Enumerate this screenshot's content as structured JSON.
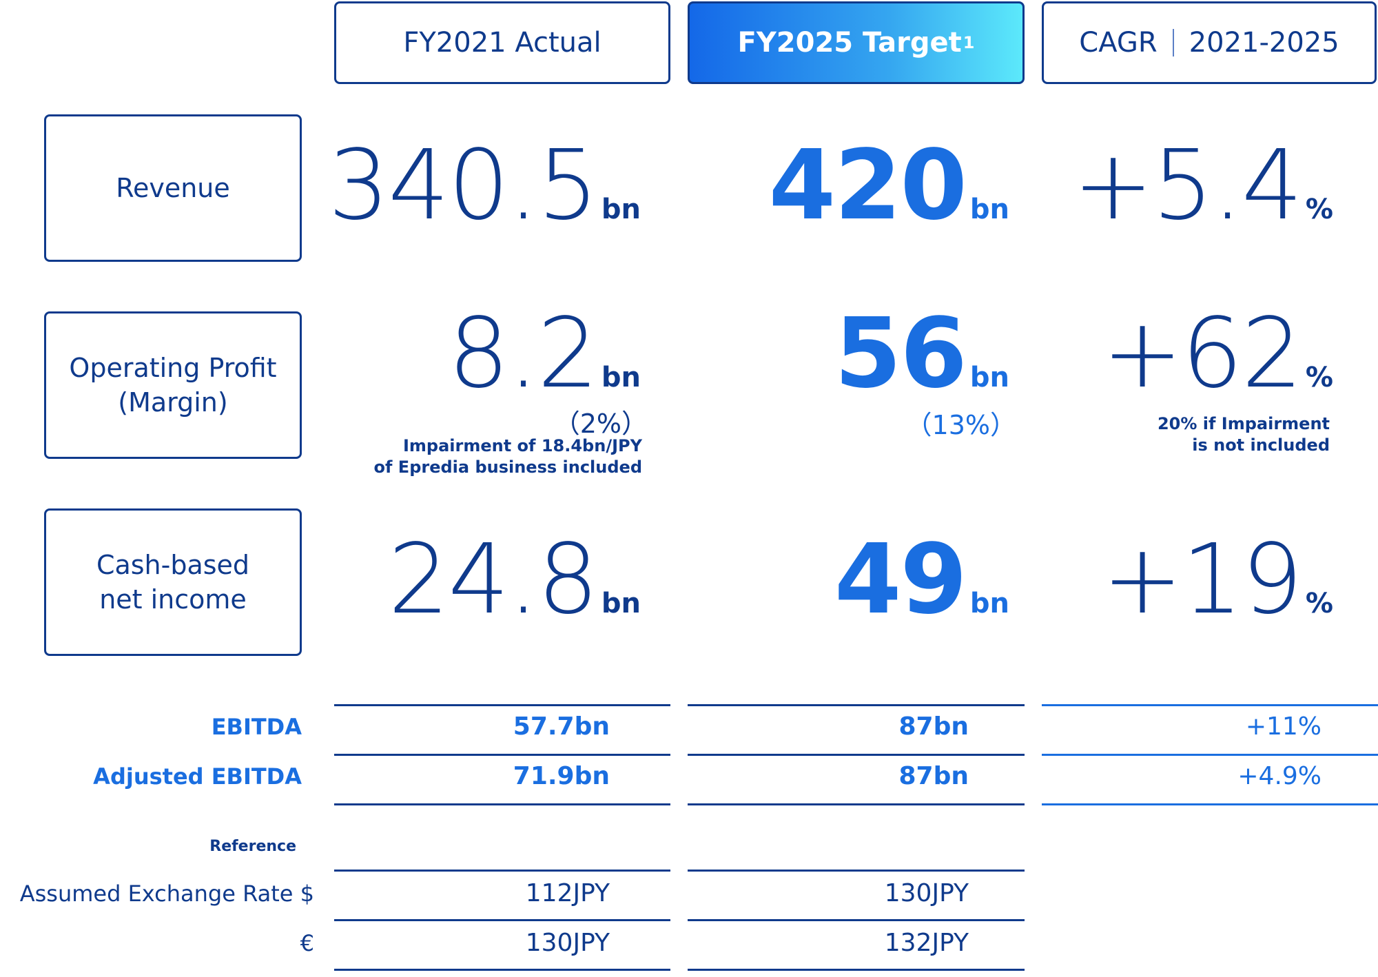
{
  "headers": {
    "actual": "FY2021 Actual",
    "target": "FY2025 Target",
    "target_footnote": "1",
    "cagr_left": "CAGR",
    "cagr_right": "2021-2025"
  },
  "rows": {
    "revenue": {
      "label": "Revenue",
      "actual": "340.5",
      "actual_unit": "bn",
      "target": "420",
      "target_unit": "bn",
      "cagr": "+5.4",
      "cagr_unit": "%"
    },
    "operating_profit": {
      "label_line1": "Operating Profit",
      "label_line2": "(Margin)",
      "actual": "8.2",
      "actual_unit": "bn",
      "actual_margin": "（2%）",
      "actual_note_line1": "Impairment of 18.4bn/JPY",
      "actual_note_line2": "of Epredia business included",
      "target": "56",
      "target_unit": "bn",
      "target_margin": "（13%）",
      "cagr": "+62",
      "cagr_unit": "%",
      "cagr_note_line1": "20% if Impairment",
      "cagr_note_line2": "is not included"
    },
    "cash_net_income": {
      "label_line1": "Cash-based",
      "label_line2": "net income",
      "actual": "24.8",
      "actual_unit": "bn",
      "target": "49",
      "target_unit": "bn",
      "cagr": "+19",
      "cagr_unit": "%"
    }
  },
  "ebitda_table": {
    "ebitda": {
      "label": "EBITDA",
      "actual": "57.7bn",
      "target": "87bn",
      "cagr": "+11%"
    },
    "adjusted": {
      "label": "Adjusted EBITDA",
      "actual": "71.9bn",
      "target": "87bn",
      "cagr": "+4.9%"
    }
  },
  "reference": {
    "title": "Reference",
    "usd": {
      "label": "Assumed Exchange Rate $",
      "actual": "112JPY",
      "target": "130JPY"
    },
    "eur": {
      "label": "€",
      "actual": "130JPY",
      "target": "132JPY"
    }
  },
  "colors": {
    "navy": "#0f3a8c",
    "blue": "#1a6ee0",
    "gradient_start": "#1468e8",
    "gradient_end": "#5ce9fb"
  }
}
